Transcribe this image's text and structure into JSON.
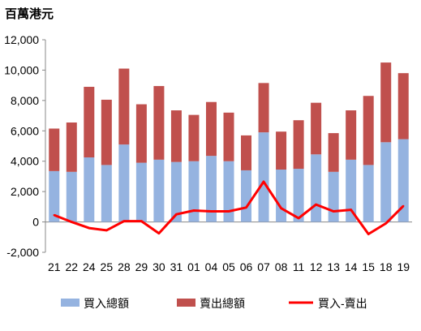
{
  "chart_data": {
    "type": "bar",
    "unit_label": "百萬港元",
    "categories": [
      "21",
      "22",
      "24",
      "25",
      "28",
      "29",
      "30",
      "31",
      "01",
      "04",
      "05",
      "06",
      "07",
      "08",
      "11",
      "12",
      "13",
      "14",
      "15",
      "18",
      "19"
    ],
    "series": [
      {
        "name": "買入總額",
        "kind": "stacked-bar",
        "color": "#95b3e0",
        "values": [
          3350,
          3300,
          4250,
          3750,
          5100,
          3900,
          4100,
          3950,
          4000,
          4350,
          4000,
          3400,
          5900,
          3450,
          3500,
          4450,
          3300,
          4100,
          3750,
          5250,
          5450
        ]
      },
      {
        "name": "賣出總額",
        "kind": "stacked-bar",
        "color": "#c0504d",
        "values": [
          2800,
          3250,
          4650,
          4300,
          5000,
          3850,
          4850,
          3400,
          3050,
          3550,
          3200,
          2300,
          3250,
          2500,
          3200,
          3400,
          2550,
          3250,
          4550,
          5250,
          4350
        ]
      },
      {
        "name": "買入-賣出",
        "kind": "line",
        "color": "#ff0000",
        "values": [
          450,
          0,
          -400,
          -550,
          50,
          50,
          -750,
          500,
          750,
          700,
          700,
          950,
          2650,
          900,
          250,
          1150,
          700,
          800,
          -800,
          -100,
          1050
        ]
      }
    ],
    "yticks": [
      "12,000",
      "10,000",
      "8,000",
      "6,000",
      "4,000",
      "2,000",
      "0",
      "-2,000"
    ],
    "ylim": [
      -2000,
      12000
    ],
    "legend_position": "bottom",
    "grid": false
  }
}
